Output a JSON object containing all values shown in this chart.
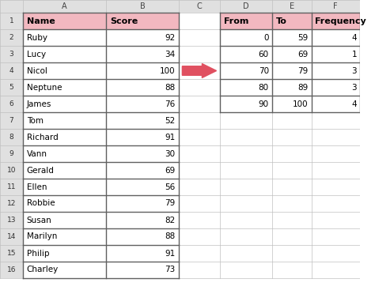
{
  "left_table": {
    "headers": [
      "Name",
      "Score"
    ],
    "rows": [
      [
        "Ruby",
        "92"
      ],
      [
        "Lucy",
        "34"
      ],
      [
        "Nicol",
        "100"
      ],
      [
        "Neptune",
        "88"
      ],
      [
        "James",
        "76"
      ],
      [
        "Tom",
        "52"
      ],
      [
        "Richard",
        "91"
      ],
      [
        "Vann",
        "30"
      ],
      [
        "Gerald",
        "69"
      ],
      [
        "Ellen",
        "56"
      ],
      [
        "Robbie",
        "79"
      ],
      [
        "Susan",
        "82"
      ],
      [
        "Marilyn",
        "88"
      ],
      [
        "Philip",
        "91"
      ],
      [
        "Charley",
        "73"
      ]
    ]
  },
  "right_table": {
    "headers": [
      "From",
      "To",
      "Frequency"
    ],
    "rows": [
      [
        "0",
        "59",
        "4"
      ],
      [
        "60",
        "69",
        "1"
      ],
      [
        "70",
        "79",
        "3"
      ],
      [
        "80",
        "89",
        "3"
      ],
      [
        "90",
        "100",
        "4"
      ]
    ]
  },
  "col_letters": [
    "",
    "A",
    "B",
    "C",
    "D",
    "E",
    "F"
  ],
  "header_bg": "#F2B8C0",
  "thin_line_color": "#C0C0C0",
  "thick_line_color": "#606060",
  "header_row_bg": "#E0E0E0",
  "background_color": "#FFFFFF",
  "arrow_color": "#E05060",
  "font_size": 7.5,
  "header_font_size": 8.0,
  "col_letter_fontsize": 7.0,
  "row_num_fontsize": 6.5
}
